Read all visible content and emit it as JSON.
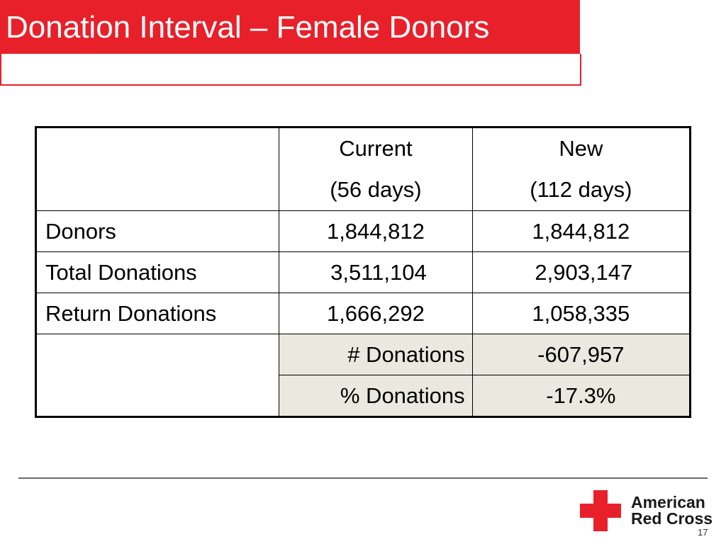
{
  "slide": {
    "title": "Donation Interval – Female Donors",
    "page_number": "17"
  },
  "table": {
    "header": {
      "col2_line1": "Current",
      "col2_line2": "(56 days)",
      "col3_line1": "New",
      "col3_line2": "(112 days)"
    },
    "rows": [
      {
        "label": "Donors",
        "current": "1,844,812",
        "new": "1,844,812"
      },
      {
        "label": "Total Donations",
        "current": "3,511,104",
        "new": "2,903,147"
      },
      {
        "label": "Return Donations",
        "current": "1,666,292",
        "new": "1,058,335"
      }
    ],
    "summary": [
      {
        "label": "# Donations",
        "value": "-607,957"
      },
      {
        "label": "% Donations",
        "value": "-17.3%"
      }
    ]
  },
  "logo": {
    "line1": "American",
    "line2": "Red Cross"
  },
  "colors": {
    "title_background": "#e8202a",
    "cross": "#e8202a",
    "summary_shading": "#ebe9df"
  },
  "icons": {
    "logo_mark": "red-cross-icon"
  }
}
